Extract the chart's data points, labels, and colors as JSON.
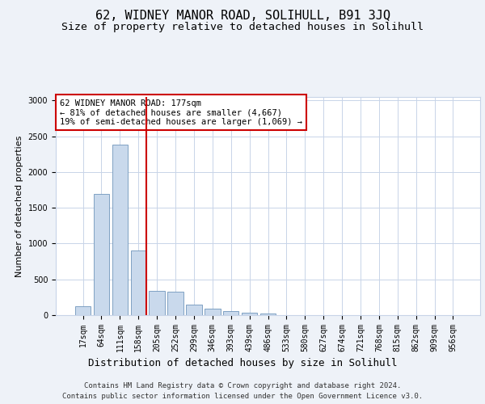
{
  "title": "62, WIDNEY MANOR ROAD, SOLIHULL, B91 3JQ",
  "subtitle": "Size of property relative to detached houses in Solihull",
  "xlabel": "Distribution of detached houses by size in Solihull",
  "ylabel": "Number of detached properties",
  "footer_line1": "Contains HM Land Registry data © Crown copyright and database right 2024.",
  "footer_line2": "Contains public sector information licensed under the Open Government Licence v3.0.",
  "annotation_line1": "62 WIDNEY MANOR ROAD: 177sqm",
  "annotation_line2": "← 81% of detached houses are smaller (4,667)",
  "annotation_line3": "19% of semi-detached houses are larger (1,069) →",
  "bar_color": "#c9d9ec",
  "bar_edge_color": "#7096bb",
  "vline_color": "#cc0000",
  "vline_x_index": 3,
  "categories": [
    "17sqm",
    "64sqm",
    "111sqm",
    "158sqm",
    "205sqm",
    "252sqm",
    "299sqm",
    "346sqm",
    "393sqm",
    "439sqm",
    "486sqm",
    "533sqm",
    "580sqm",
    "627sqm",
    "674sqm",
    "721sqm",
    "768sqm",
    "815sqm",
    "862sqm",
    "909sqm",
    "956sqm"
  ],
  "values": [
    120,
    1700,
    2380,
    900,
    340,
    330,
    150,
    90,
    60,
    30,
    20,
    5,
    5,
    2,
    2,
    1,
    1,
    1,
    0,
    0,
    0
  ],
  "ylim": [
    0,
    3050
  ],
  "yticks": [
    0,
    500,
    1000,
    1500,
    2000,
    2500,
    3000
  ],
  "bg_color": "#eef2f8",
  "plot_bg_color": "#ffffff",
  "grid_color": "#c8d4e8",
  "title_fontsize": 11,
  "subtitle_fontsize": 9.5,
  "ylabel_fontsize": 8,
  "xlabel_fontsize": 9,
  "tick_fontsize": 7,
  "annotation_fontsize": 7.5,
  "footer_fontsize": 6.5
}
